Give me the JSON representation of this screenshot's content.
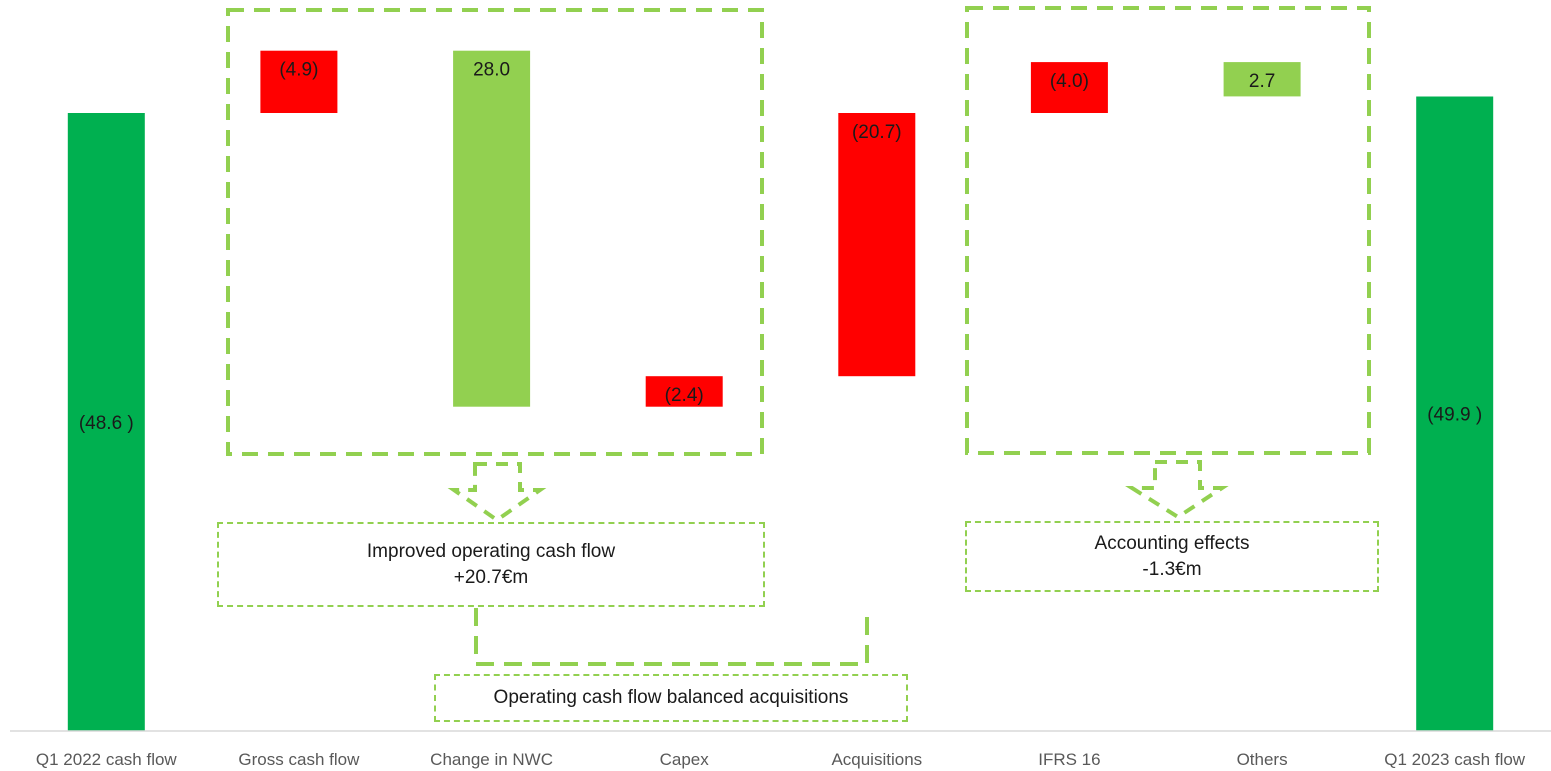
{
  "chart_data": {
    "type": "bar",
    "subtype": "waterfall",
    "categories": [
      "Q1 2022 cash flow",
      "Gross cash flow",
      "Change in NWC",
      "Capex",
      "Acquisitions",
      "IFRS 16",
      "Others",
      "Q1 2023 cash flow"
    ],
    "values": [
      -48.6,
      -4.9,
      28.0,
      -2.4,
      -20.7,
      -4.0,
      2.7,
      -49.9
    ],
    "data_labels": [
      "(48.6 )",
      "(4.9)",
      "28.0",
      "(2.4)",
      "(20.7)",
      "(4.0)",
      "2.7",
      "(49.9 )"
    ],
    "bar_kinds": [
      "total",
      "delta",
      "delta",
      "delta",
      "delta",
      "delta",
      "delta",
      "total"
    ],
    "colors": {
      "total": "#00b050",
      "positive": "#92d050",
      "negative": "#ff0000",
      "annotation": "#92d050",
      "axis": "#d9d9d9",
      "tick_text": "#595959"
    },
    "ylim": [
      -54,
      0
    ],
    "grid": false,
    "legend": "none",
    "title": "",
    "xlabel": "",
    "ylabel": ""
  },
  "annotations": {
    "operating": {
      "line1": "Improved operating cash flow",
      "line2": "+20.7€m"
    },
    "accounting": {
      "line1": "Accounting effects",
      "line2": "-1.3€m"
    },
    "balance": {
      "text": "Operating cash flow balanced acquisitions"
    }
  }
}
